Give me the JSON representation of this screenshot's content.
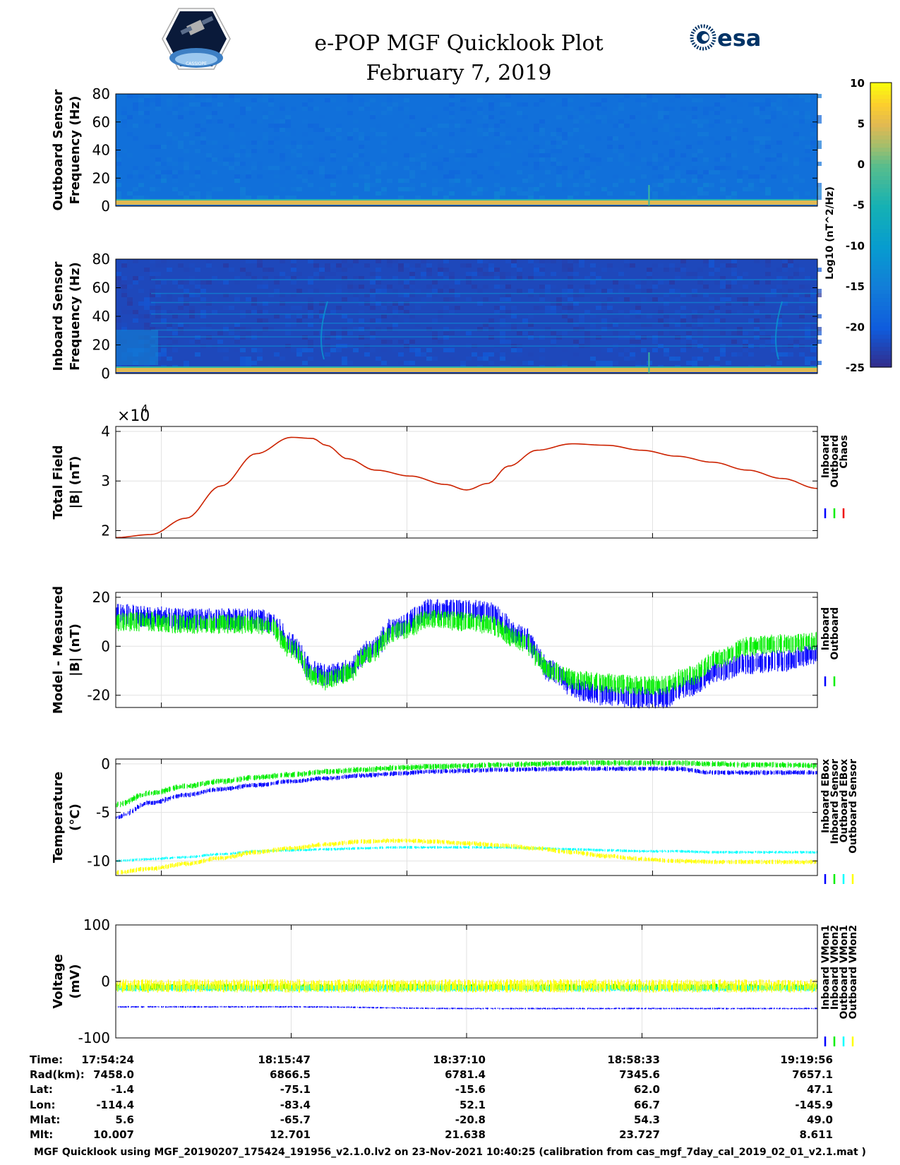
{
  "header": {
    "title": "e-POP MGF Quicklook Plot",
    "date": "February 7, 2019",
    "logo_left_text": "CASSIOPE",
    "logo_right_text": "esa"
  },
  "colorbar": {
    "label": "Log10 (nT^2/Hz)",
    "ticks": [
      10,
      5,
      0,
      -5,
      -10,
      -15,
      -20,
      -25
    ],
    "range": [
      -25,
      10
    ]
  },
  "chart_data": [
    {
      "type": "heatmap",
      "id": "outboard-spectrogram",
      "ylabel": [
        "Outboard Sensor",
        "Frequency (Hz)"
      ],
      "yticks": [
        80,
        60,
        40,
        20,
        0
      ],
      "ylim": [
        0,
        80
      ],
      "description_values": {
        "background_log10": -17,
        "low_band_log10": 0
      }
    },
    {
      "type": "heatmap",
      "id": "inboard-spectrogram",
      "ylabel": [
        "Inboard Sensor",
        "Frequency (Hz)"
      ],
      "yticks": [
        80,
        60,
        40,
        20,
        0
      ],
      "ylim": [
        0,
        80
      ],
      "description_values": {
        "background_log10": -22,
        "low_band_log10": 0
      }
    },
    {
      "type": "line",
      "id": "total-field",
      "ylabel": [
        "Total Field",
        "|B| (nT)"
      ],
      "yticks": [
        "4",
        "3",
        "2"
      ],
      "exponent_label": "×10",
      "exponent_power": "4",
      "ylim": [
        1.85,
        4.1
      ],
      "x": [
        0,
        0.05,
        0.1,
        0.15,
        0.2,
        0.25,
        0.28,
        0.3,
        0.33,
        0.37,
        0.42,
        0.47,
        0.5,
        0.53,
        0.56,
        0.6,
        0.65,
        0.7,
        0.75,
        0.8,
        0.85,
        0.9,
        0.95,
        1.0
      ],
      "series": [
        {
          "name": "Chaos",
          "color": "#cc2200",
          "values": [
            1.86,
            1.92,
            2.25,
            2.9,
            3.55,
            3.88,
            3.86,
            3.72,
            3.45,
            3.22,
            3.1,
            2.93,
            2.82,
            2.95,
            3.3,
            3.62,
            3.75,
            3.72,
            3.62,
            3.5,
            3.38,
            3.22,
            3.05,
            2.85
          ]
        }
      ],
      "legend": [
        "Inboard",
        "Outboard",
        "Chaos"
      ],
      "legend_colors": [
        "#0000ff",
        "#00ee00",
        "#ee0000"
      ]
    },
    {
      "type": "line",
      "id": "model-measured",
      "ylabel": [
        "Model - Measured",
        "|B| (nT)"
      ],
      "yticks": [
        "20",
        "0",
        "-20"
      ],
      "ylim": [
        -25,
        22
      ],
      "x": [
        0,
        0.05,
        0.1,
        0.15,
        0.2,
        0.22,
        0.25,
        0.28,
        0.3,
        0.33,
        0.36,
        0.4,
        0.45,
        0.5,
        0.53,
        0.58,
        0.62,
        0.66,
        0.7,
        0.74,
        0.78,
        0.82,
        0.86,
        0.9,
        0.95,
        1.0
      ],
      "series": [
        {
          "name": "Inboard",
          "color": "#0000ff",
          "values": [
            13,
            12,
            11,
            11,
            11,
            10,
            1,
            -10,
            -12,
            -10,
            -2,
            8,
            15,
            15,
            14,
            4,
            -10,
            -18,
            -20,
            -21,
            -21,
            -16,
            -10,
            -7,
            -6,
            -3
          ]
        },
        {
          "name": "Outboard",
          "color": "#00ee00",
          "values": [
            10,
            10,
            9,
            9,
            9,
            8,
            -1,
            -12,
            -14,
            -11,
            -3,
            6,
            11,
            10,
            9,
            2,
            -10,
            -14,
            -15,
            -16,
            -16,
            -12,
            -5,
            0,
            1,
            2
          ]
        }
      ],
      "legend": [
        "Inboard",
        "Outboard"
      ],
      "legend_colors": [
        "#0000ff",
        "#00ee00"
      ]
    },
    {
      "type": "line",
      "id": "temperature",
      "ylabel": [
        "Temperature",
        "(°C)"
      ],
      "yticks": [
        "0",
        "-5",
        "-10"
      ],
      "ylim": [
        -11.5,
        0.5
      ],
      "x": [
        0,
        0.05,
        0.1,
        0.15,
        0.2,
        0.25,
        0.3,
        0.35,
        0.4,
        0.45,
        0.5,
        0.55,
        0.6,
        0.65,
        0.7,
        0.75,
        0.8,
        0.85,
        0.9,
        0.95,
        1.0
      ],
      "series": [
        {
          "name": "Inboard EBox",
          "color": "#0000ff",
          "values": [
            -5.5,
            -4.0,
            -3.2,
            -2.6,
            -2.2,
            -1.8,
            -1.5,
            -1.2,
            -1.0,
            -0.8,
            -0.7,
            -0.6,
            -0.55,
            -0.5,
            -0.5,
            -0.5,
            -0.5,
            -0.9,
            -0.9,
            -0.9,
            -0.9
          ]
        },
        {
          "name": "Inboard Sensor",
          "color": "#00ee00",
          "values": [
            -4.2,
            -3.0,
            -2.3,
            -1.8,
            -1.4,
            -1.1,
            -0.8,
            -0.6,
            -0.4,
            -0.3,
            -0.2,
            -0.1,
            0.0,
            0.1,
            0.1,
            0.1,
            0.1,
            0.0,
            -0.1,
            -0.1,
            -0.2
          ]
        },
        {
          "name": "Outboard EBox",
          "color": "#00ffff",
          "values": [
            -10.0,
            -9.8,
            -9.6,
            -9.3,
            -9.0,
            -8.9,
            -8.8,
            -8.7,
            -8.6,
            -8.6,
            -8.6,
            -8.6,
            -8.7,
            -8.8,
            -8.9,
            -9.0,
            -9.0,
            -9.1,
            -9.1,
            -9.1,
            -9.1
          ]
        },
        {
          "name": "Outboard Sensor",
          "color": "#ffff00",
          "values": [
            -11.2,
            -10.8,
            -10.3,
            -9.7,
            -9.1,
            -8.7,
            -8.3,
            -8.0,
            -7.9,
            -8.0,
            -8.2,
            -8.4,
            -8.7,
            -9.1,
            -9.5,
            -9.8,
            -10.0,
            -10.1,
            -10.1,
            -10.1,
            -10.1
          ]
        }
      ],
      "legend": [
        "Inboard EBox",
        "Inboard Sensor",
        "Outboard EBox",
        "Outboard Sensor"
      ],
      "legend_colors": [
        "#0000ff",
        "#00ee00",
        "#00ffff",
        "#ffff00"
      ]
    },
    {
      "type": "line",
      "id": "voltage",
      "ylabel": [
        "Voltage",
        "(mV)"
      ],
      "yticks": [
        "100",
        "0",
        "-100"
      ],
      "ylim": [
        -100,
        100
      ],
      "x": [
        0,
        0.25,
        0.5,
        0.75,
        1.0
      ],
      "series": [
        {
          "name": "Inboard VMon1",
          "color": "#0000ff",
          "values": [
            -45,
            -45,
            -48,
            -48,
            -48
          ]
        },
        {
          "name": "Inboard VMon2",
          "color": "#00ee00",
          "values": [
            -10,
            -10,
            -10,
            -10,
            -10
          ]
        },
        {
          "name": "Outboard VMon1",
          "color": "#00ffff",
          "values": [
            -12,
            -12,
            -12,
            -12,
            -12
          ]
        },
        {
          "name": "Outboard VMon2",
          "color": "#ffff00",
          "values": [
            -8,
            -8,
            -8,
            -8,
            -8
          ]
        }
      ],
      "legend": [
        "Inboard VMon1",
        "Inboard VMon2",
        "Outboard VMon1",
        "Outboard VMon2"
      ],
      "legend_colors": [
        "#0000ff",
        "#00ee00",
        "#00ffff",
        "#ffff00"
      ]
    }
  ],
  "ephemeris": {
    "row_labels": [
      "Time:",
      "Rad(km):",
      "Lat:",
      "Lon:",
      "Mlat:",
      "Mlt:"
    ],
    "columns": [
      [
        "17:54:24",
        "7458.0",
        "-1.4",
        "-114.4",
        "5.6",
        "10.007"
      ],
      [
        "18:15:47",
        "6866.5",
        "-75.1",
        "-83.4",
        "-65.7",
        "12.701"
      ],
      [
        "18:37:10",
        "6781.4",
        "-15.6",
        "52.1",
        "-20.8",
        "21.638"
      ],
      [
        "18:58:33",
        "7345.6",
        "62.0",
        "66.7",
        "54.3",
        "23.727"
      ],
      [
        "19:19:56",
        "7657.1",
        "47.1",
        "-145.9",
        "49.0",
        "8.611"
      ]
    ]
  },
  "footer": "MGF Quicklook using MGF_20190207_175424_191956_v2.1.0.lv2 on 23-Nov-2021 10:40:25 (calibration from cas_mgf_7day_cal_2019_02_01_v2.1.mat )"
}
